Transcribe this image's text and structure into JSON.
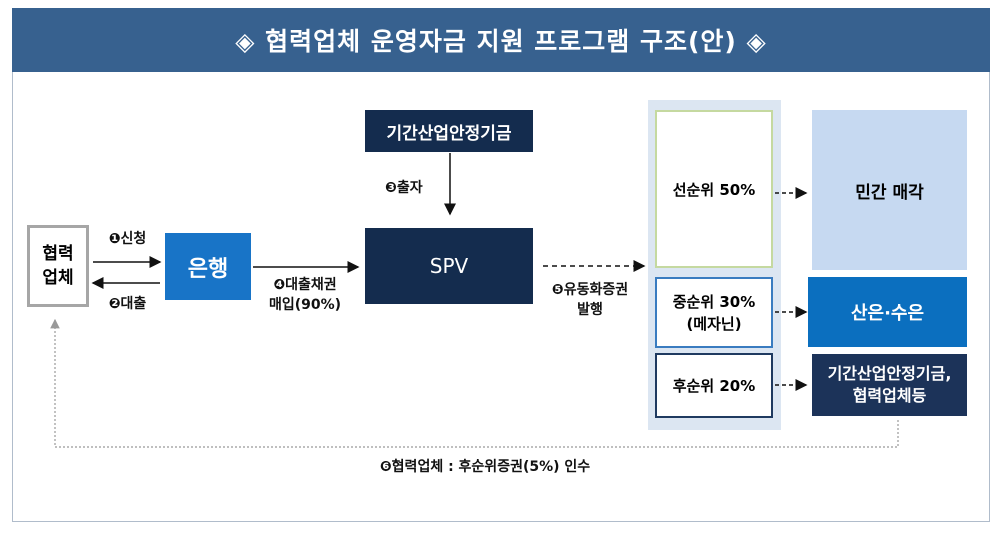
{
  "title": "◈ 협력업체 운영자금 지원 프로그램 구조(안) ◈",
  "nodes": {
    "partner": "협력\n업체",
    "bank": "은행",
    "fund": "기간산업안정기금",
    "spv": "SPV",
    "senior": "선순위 50%",
    "mezz": "중순위 30%\n(메자닌)",
    "junior": "후순위 20%",
    "private_sale": "민간 매각",
    "kdb_kexim": "산은·수은",
    "fund_partners": "기간산업안정기금,\n협력업체등"
  },
  "steps": {
    "s1": "❶신청",
    "s2": "❷대출",
    "s3": "❸출자",
    "s4": "❹대출채권\n매입(90%)",
    "s5": "❺유동화증권\n발행",
    "s6": "❻협력업체 : 후순위증권(5%) 인수"
  },
  "colors": {
    "header": "#37618f",
    "bank": "#1874c7",
    "navy": "#142c4e",
    "panel": "#dce6f2"
  }
}
